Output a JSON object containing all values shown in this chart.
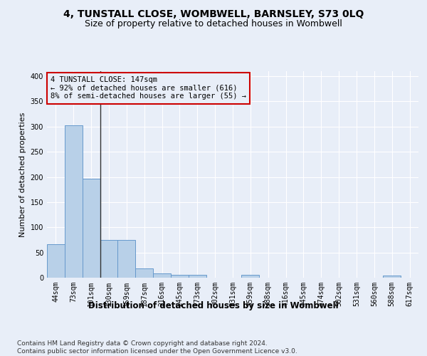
{
  "title": "4, TUNSTALL CLOSE, WOMBWELL, BARNSLEY, S73 0LQ",
  "subtitle": "Size of property relative to detached houses in Wombwell",
  "xlabel": "Distribution of detached houses by size in Wombwell",
  "ylabel": "Number of detached properties",
  "categories": [
    "44sqm",
    "73sqm",
    "101sqm",
    "130sqm",
    "159sqm",
    "187sqm",
    "216sqm",
    "245sqm",
    "273sqm",
    "302sqm",
    "331sqm",
    "359sqm",
    "388sqm",
    "416sqm",
    "445sqm",
    "474sqm",
    "502sqm",
    "531sqm",
    "560sqm",
    "588sqm",
    "617sqm"
  ],
  "values": [
    67,
    302,
    197,
    75,
    75,
    18,
    9,
    5,
    5,
    0,
    0,
    5,
    0,
    0,
    0,
    0,
    0,
    0,
    0,
    4,
    0
  ],
  "bar_color": "#b8d0e8",
  "bar_edge_color": "#6699cc",
  "background_color": "#e8eef8",
  "vline_color": "#333333",
  "vline_x": 2.5,
  "annotation_line1": "4 TUNSTALL CLOSE: 147sqm",
  "annotation_line2": "← 92% of detached houses are smaller (616)",
  "annotation_line3": "8% of semi-detached houses are larger (55) →",
  "annotation_box_edgecolor": "#cc0000",
  "ylim": [
    0,
    410
  ],
  "yticks": [
    0,
    50,
    100,
    150,
    200,
    250,
    300,
    350,
    400
  ],
  "title_fontsize": 10,
  "subtitle_fontsize": 9,
  "xlabel_fontsize": 8.5,
  "ylabel_fontsize": 8,
  "tick_fontsize": 7,
  "annotation_fontsize": 7.5,
  "footer_fontsize": 6.5,
  "footer": "Contains HM Land Registry data © Crown copyright and database right 2024.\nContains public sector information licensed under the Open Government Licence v3.0."
}
